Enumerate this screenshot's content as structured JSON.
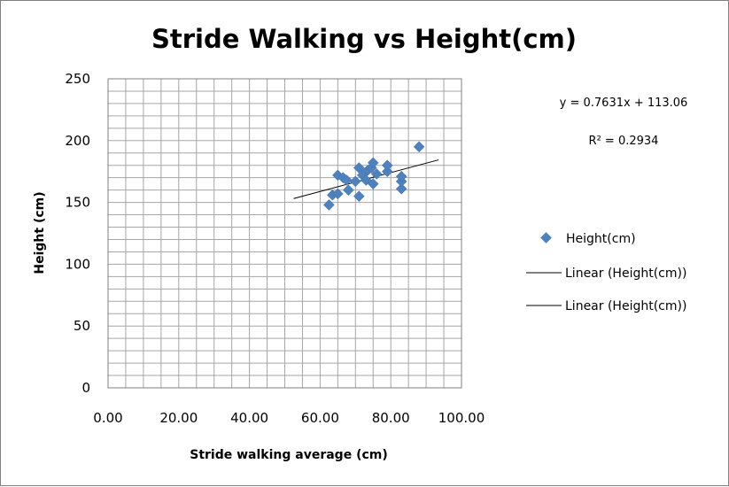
{
  "chart_data": {
    "type": "scatter",
    "title": "Stride Walking vs Height(cm)",
    "xlabel": "Stride walking average (cm)",
    "ylabel": "Height (cm)",
    "xlim": [
      0,
      100
    ],
    "ylim": [
      0,
      250
    ],
    "x_ticks": [
      "0.00",
      "20.00",
      "40.00",
      "60.00",
      "80.00",
      "100.00"
    ],
    "y_ticks": [
      "0",
      "50",
      "100",
      "150",
      "200",
      "250"
    ],
    "grid": true,
    "legend_position": "right",
    "marker_color": "#4F81BD",
    "trendline_color": "#000000",
    "series": [
      {
        "name": "Height(cm)",
        "points": [
          {
            "x": 62.5,
            "y": 148
          },
          {
            "x": 63.5,
            "y": 156
          },
          {
            "x": 65,
            "y": 157
          },
          {
            "x": 65,
            "y": 172
          },
          {
            "x": 66.5,
            "y": 170
          },
          {
            "x": 67.5,
            "y": 168
          },
          {
            "x": 68,
            "y": 160
          },
          {
            "x": 70,
            "y": 167
          },
          {
            "x": 71,
            "y": 155
          },
          {
            "x": 71,
            "y": 178
          },
          {
            "x": 72,
            "y": 172
          },
          {
            "x": 73,
            "y": 168
          },
          {
            "x": 73.5,
            "y": 176
          },
          {
            "x": 74.5,
            "y": 178
          },
          {
            "x": 75,
            "y": 165
          },
          {
            "x": 75,
            "y": 182
          },
          {
            "x": 76,
            "y": 173
          },
          {
            "x": 79,
            "y": 175
          },
          {
            "x": 79,
            "y": 180
          },
          {
            "x": 83,
            "y": 161
          },
          {
            "x": 83,
            "y": 167
          },
          {
            "x": 83,
            "y": 171
          },
          {
            "x": 88,
            "y": 195
          }
        ]
      }
    ],
    "trendline": {
      "equation": "y = 0.7631x + 113.06",
      "r_squared": "R² = 0.2934",
      "slope": 0.7631,
      "intercept": 113.06,
      "x_range": [
        52.5,
        93.5
      ]
    },
    "legend": [
      {
        "label": "Height(cm)",
        "kind": "marker"
      },
      {
        "label": "Linear (Height(cm))",
        "kind": "line"
      },
      {
        "label": "Linear (Height(cm))",
        "kind": "line"
      }
    ]
  }
}
